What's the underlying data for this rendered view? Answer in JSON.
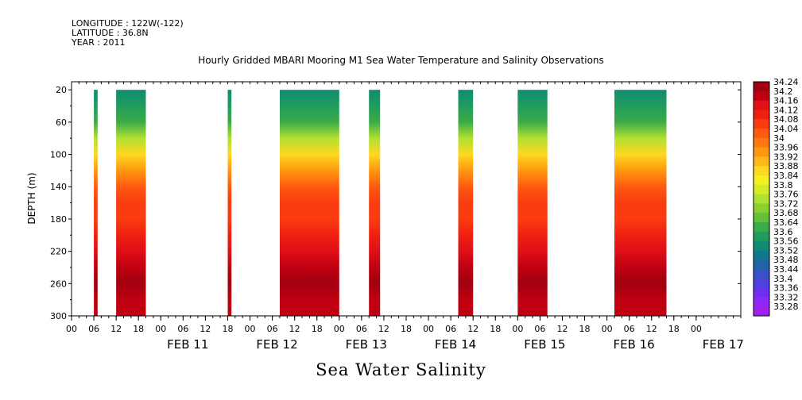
{
  "header": {
    "longitude": "LONGITUDE : 122W(-122)",
    "latitude": "LATITUDE : 36.8N",
    "year": "YEAR : 2011"
  },
  "chart_data": {
    "type": "heatmap",
    "title": "Hourly Gridded MBARI Mooring M1 Sea Water Temperature and Salinity Observations",
    "variable": "Sea Water Salinity",
    "ylabel": "DEPTH (m)",
    "y_ticks": [
      20,
      60,
      100,
      140,
      180,
      220,
      260,
      300
    ],
    "ylim": [
      300,
      10
    ],
    "y_reversed": true,
    "x_start": "2011-02-10T00:00",
    "x_end": "2011-02-17T12:00",
    "x_hour_ticks": [
      "00",
      "06",
      "12",
      "18",
      "00",
      "06",
      "12",
      "18",
      "00",
      "06",
      "12",
      "18",
      "00",
      "06",
      "12",
      "18",
      "00",
      "06",
      "12",
      "18",
      "00",
      "06",
      "12",
      "18",
      "00",
      "06",
      "12",
      "18",
      "00"
    ],
    "x_day_labels": [
      {
        "label": "FEB 11",
        "at": "2011-02-11T00:00"
      },
      {
        "label": "FEB 12",
        "at": "2011-02-12T00:00"
      },
      {
        "label": "FEB 13",
        "at": "2011-02-13T00:00"
      },
      {
        "label": "FEB 14",
        "at": "2011-02-14T00:00"
      },
      {
        "label": "FEB 15",
        "at": "2011-02-15T00:00"
      },
      {
        "label": "FEB 16",
        "at": "2011-02-16T00:00"
      },
      {
        "label": "FEB 17",
        "at": "2011-02-17T00:00"
      }
    ],
    "data_segments": [
      {
        "start": "2011-02-10T06:00",
        "end": "2011-02-10T07:00"
      },
      {
        "start": "2011-02-10T12:00",
        "end": "2011-02-10T20:00"
      },
      {
        "start": "2011-02-11T18:00",
        "end": "2011-02-11T19:00"
      },
      {
        "start": "2011-02-12T08:00",
        "end": "2011-02-13T00:00"
      },
      {
        "start": "2011-02-13T08:00",
        "end": "2011-02-13T11:00"
      },
      {
        "start": "2011-02-14T08:00",
        "end": "2011-02-14T12:00"
      },
      {
        "start": "2011-02-15T00:00",
        "end": "2011-02-15T08:00"
      },
      {
        "start": "2011-02-16T02:00",
        "end": "2011-02-16T16:00"
      }
    ],
    "depth_profile": [
      {
        "depth": 20,
        "salinity": 33.54
      },
      {
        "depth": 40,
        "salinity": 33.56
      },
      {
        "depth": 60,
        "salinity": 33.62
      },
      {
        "depth": 80,
        "salinity": 33.74
      },
      {
        "depth": 100,
        "salinity": 33.84
      },
      {
        "depth": 120,
        "salinity": 33.92
      },
      {
        "depth": 140,
        "salinity": 34.02
      },
      {
        "depth": 160,
        "salinity": 34.06
      },
      {
        "depth": 180,
        "salinity": 34.07
      },
      {
        "depth": 200,
        "salinity": 34.08
      },
      {
        "depth": 220,
        "salinity": 34.15
      },
      {
        "depth": 240,
        "salinity": 34.19
      },
      {
        "depth": 260,
        "salinity": 34.22
      },
      {
        "depth": 280,
        "salinity": 34.18
      },
      {
        "depth": 300,
        "salinity": 34.16
      }
    ],
    "colorbar_levels": [
      "34.24",
      "34.2",
      "34.16",
      "34.12",
      "34.08",
      "34.04",
      "34",
      "33.96",
      "33.92",
      "33.88",
      "33.84",
      "33.8",
      "33.76",
      "33.72",
      "33.68",
      "33.64",
      "33.6",
      "33.56",
      "33.52",
      "33.48",
      "33.44",
      "33.4",
      "33.36",
      "33.32",
      "33.28"
    ],
    "colorbar_colors": [
      "#a00010",
      "#c00010",
      "#de1018",
      "#f02010",
      "#fa3c10",
      "#ff5a10",
      "#ff7810",
      "#ff9810",
      "#ffb818",
      "#ffd820",
      "#f4f020",
      "#d4ec28",
      "#b0e030",
      "#8cd030",
      "#64c038",
      "#3cac48",
      "#209c5c",
      "#108c74",
      "#10788c",
      "#2064a8",
      "#3850c8",
      "#5040e0",
      "#6c30f0",
      "#8c28f8",
      "#a020f0"
    ]
  }
}
